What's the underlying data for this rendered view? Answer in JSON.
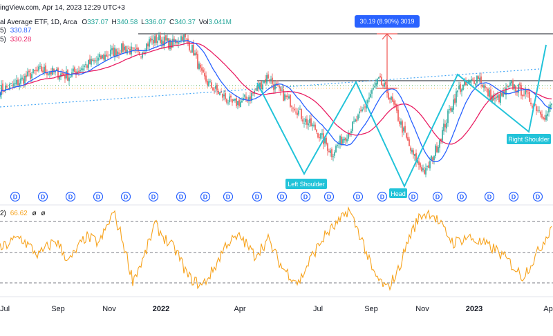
{
  "header": {
    "source_fragment": "ingView.com, Apr 14, 2023 12:29 UTC+3",
    "symbol_fragment": "al Average ETF, 1D, Arca",
    "ohlc": {
      "o_label": "O",
      "o": "337.07",
      "h_label": "H",
      "h": "340.58",
      "l_label": "L",
      "l": "336.07",
      "c_label": "C",
      "c": "340.37",
      "vol_label": "Vol",
      "vol": "3.041M"
    },
    "ma1": {
      "label_fragment": "5)",
      "value": "330.87",
      "color": "#2962ff"
    },
    "ma2": {
      "label_fragment": "5)",
      "value": "330.28",
      "color": "#e91e63"
    }
  },
  "rsi_header": {
    "label_fragment": "2)",
    "value": "66.62",
    "extra1": "ø",
    "extra2": "ø",
    "color": "#f7a21b"
  },
  "measure_label": "30.19 (8.90%) 3019",
  "annotations": {
    "left_shoulder": "Left Shoulder",
    "head": "Head",
    "right_shoulder": "Right Shoulder"
  },
  "dividend_marker_text": "D",
  "x_tick_labels": [
    "Jul",
    "Sep",
    "Nov",
    "2022",
    "Apr",
    "Jul",
    "Sep",
    "Nov",
    "2023",
    "Ap"
  ],
  "colors": {
    "up": "#26a69a",
    "down": "#ef5350",
    "ma_blue": "#2962ff",
    "ma_red": "#e91e63",
    "pattern": "#22c3d9",
    "rsi": "#f7a21b",
    "measure": "#ef5350",
    "tag_bg": "#2962ff"
  },
  "chart_data": {
    "type": "candlestick",
    "title": "",
    "x_axis_labels": [
      "Jul",
      "Sep",
      "Nov",
      "2022",
      "Apr",
      "Jul",
      "Sep",
      "Nov",
      "2023",
      "Ap"
    ],
    "neckline_price": 309,
    "measured_move": {
      "points": 30.19,
      "percent": 8.9,
      "ticks": 3019,
      "from_price": 309,
      "to_price": 339.2
    },
    "patterns": [
      {
        "label": "Left Shoulder",
        "price": 267
      },
      {
        "label": "Head",
        "price": 248
      },
      {
        "label": "Right Shoulder",
        "price": 286
      }
    ],
    "price_anchors": [
      [
        0,
        303
      ],
      [
        10,
        306
      ],
      [
        20,
        312
      ],
      [
        30,
        316
      ],
      [
        40,
        314
      ],
      [
        50,
        312
      ],
      [
        60,
        318
      ],
      [
        70,
        322
      ],
      [
        80,
        327
      ],
      [
        90,
        330
      ],
      [
        100,
        326
      ],
      [
        108,
        334
      ],
      [
        116,
        336
      ],
      [
        124,
        332
      ],
      [
        132,
        338
      ],
      [
        140,
        328
      ],
      [
        146,
        312
      ],
      [
        152,
        306
      ],
      [
        160,
        300
      ],
      [
        168,
        294
      ],
      [
        176,
        296
      ],
      [
        182,
        300
      ],
      [
        188,
        306
      ],
      [
        194,
        312
      ],
      [
        198,
        306
      ],
      [
        204,
        300
      ],
      [
        212,
        294
      ],
      [
        220,
        284
      ],
      [
        228,
        278
      ],
      [
        236,
        268
      ],
      [
        240,
        262
      ],
      [
        246,
        270
      ],
      [
        252,
        276
      ],
      [
        260,
        286
      ],
      [
        268,
        300
      ],
      [
        274,
        309
      ],
      [
        280,
        302
      ],
      [
        286,
        290
      ],
      [
        292,
        276
      ],
      [
        298,
        262
      ],
      [
        304,
        254
      ],
      [
        308,
        250
      ],
      [
        314,
        262
      ],
      [
        320,
        276
      ],
      [
        326,
        292
      ],
      [
        332,
        304
      ],
      [
        338,
        306
      ],
      [
        346,
        312
      ],
      [
        352,
        302
      ],
      [
        358,
        296
      ],
      [
        364,
        300
      ],
      [
        370,
        306
      ],
      [
        378,
        302
      ],
      [
        384,
        296
      ],
      [
        390,
        290
      ],
      [
        395,
        286
      ],
      [
        399,
        294
      ]
    ],
    "ma_blue_last": 330.87,
    "ma_red_last": 330.28,
    "rsi": {
      "value": 66.62,
      "levels": [
        70,
        50,
        30
      ],
      "anchors": [
        [
          0,
          52
        ],
        [
          14,
          60
        ],
        [
          28,
          48
        ],
        [
          40,
          58
        ],
        [
          50,
          44
        ],
        [
          62,
          60
        ],
        [
          72,
          56
        ],
        [
          82,
          76
        ],
        [
          88,
          60
        ],
        [
          96,
          32
        ],
        [
          104,
          46
        ],
        [
          112,
          68
        ],
        [
          120,
          58
        ],
        [
          128,
          50
        ],
        [
          136,
          34
        ],
        [
          146,
          28
        ],
        [
          154,
          38
        ],
        [
          164,
          56
        ],
        [
          174,
          60
        ],
        [
          184,
          48
        ],
        [
          194,
          58
        ],
        [
          204,
          40
        ],
        [
          216,
          30
        ],
        [
          226,
          48
        ],
        [
          236,
          62
        ],
        [
          246,
          70
        ],
        [
          252,
          78
        ],
        [
          262,
          58
        ],
        [
          270,
          36
        ],
        [
          280,
          26
        ],
        [
          288,
          38
        ],
        [
          296,
          60
        ],
        [
          304,
          74
        ],
        [
          312,
          76
        ],
        [
          320,
          66
        ],
        [
          328,
          56
        ],
        [
          338,
          60
        ],
        [
          348,
          56
        ],
        [
          358,
          52
        ],
        [
          368,
          44
        ],
        [
          378,
          34
        ],
        [
          388,
          48
        ],
        [
          399,
          67
        ]
      ]
    }
  }
}
